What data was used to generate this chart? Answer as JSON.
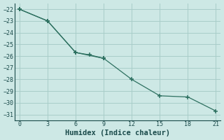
{
  "line1_x": [
    0,
    3,
    6,
    9,
    12,
    15,
    18,
    21
  ],
  "line1_y": [
    -22,
    -23,
    -25.7,
    -26.2,
    -28.0,
    -29.4,
    -29.5,
    -30.7
  ],
  "line2_x": [
    0,
    3,
    6,
    7.5,
    9
  ],
  "line2_y": [
    -22,
    -23,
    -25.7,
    -25.9,
    -26.2
  ],
  "color": "#2d7060",
  "bg_color": "#cde8e5",
  "grid_color": "#a8cdc9",
  "xlabel": "Humidex (Indice chaleur)",
  "xlim": [
    -0.5,
    21.5
  ],
  "ylim": [
    -31.5,
    -21.5
  ],
  "xticks": [
    0,
    3,
    6,
    9,
    12,
    15,
    18,
    21
  ],
  "yticks": [
    -22,
    -23,
    -24,
    -25,
    -26,
    -27,
    -28,
    -29,
    -30,
    -31
  ],
  "font_color": "#1a4a4a",
  "tick_fontsize": 6.0,
  "xlabel_fontsize": 7.5
}
